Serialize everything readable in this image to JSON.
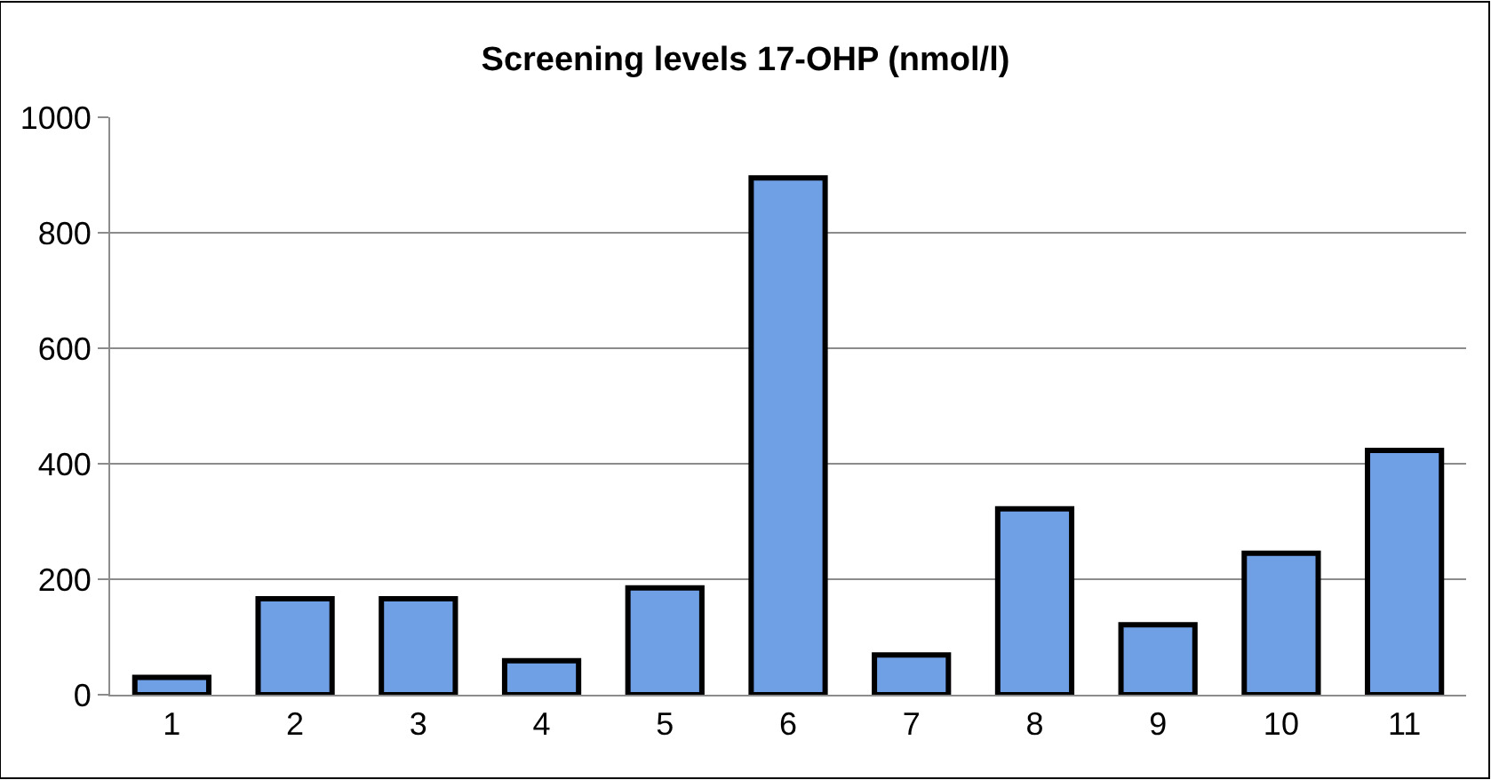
{
  "chart_data": {
    "type": "bar",
    "title": "Screening levels 17-OHP (nmol/l)",
    "categories": [
      "1",
      "2",
      "3",
      "4",
      "5",
      "6",
      "7",
      "8",
      "9",
      "10",
      "11"
    ],
    "values": [
      30,
      166,
      166,
      59,
      185,
      895,
      69,
      322,
      121,
      245,
      423
    ],
    "color": "#6f9fe4",
    "ylim": [
      0,
      1000
    ],
    "yticks": [
      0,
      200,
      400,
      600,
      800,
      1000
    ],
    "grid": "y"
  }
}
